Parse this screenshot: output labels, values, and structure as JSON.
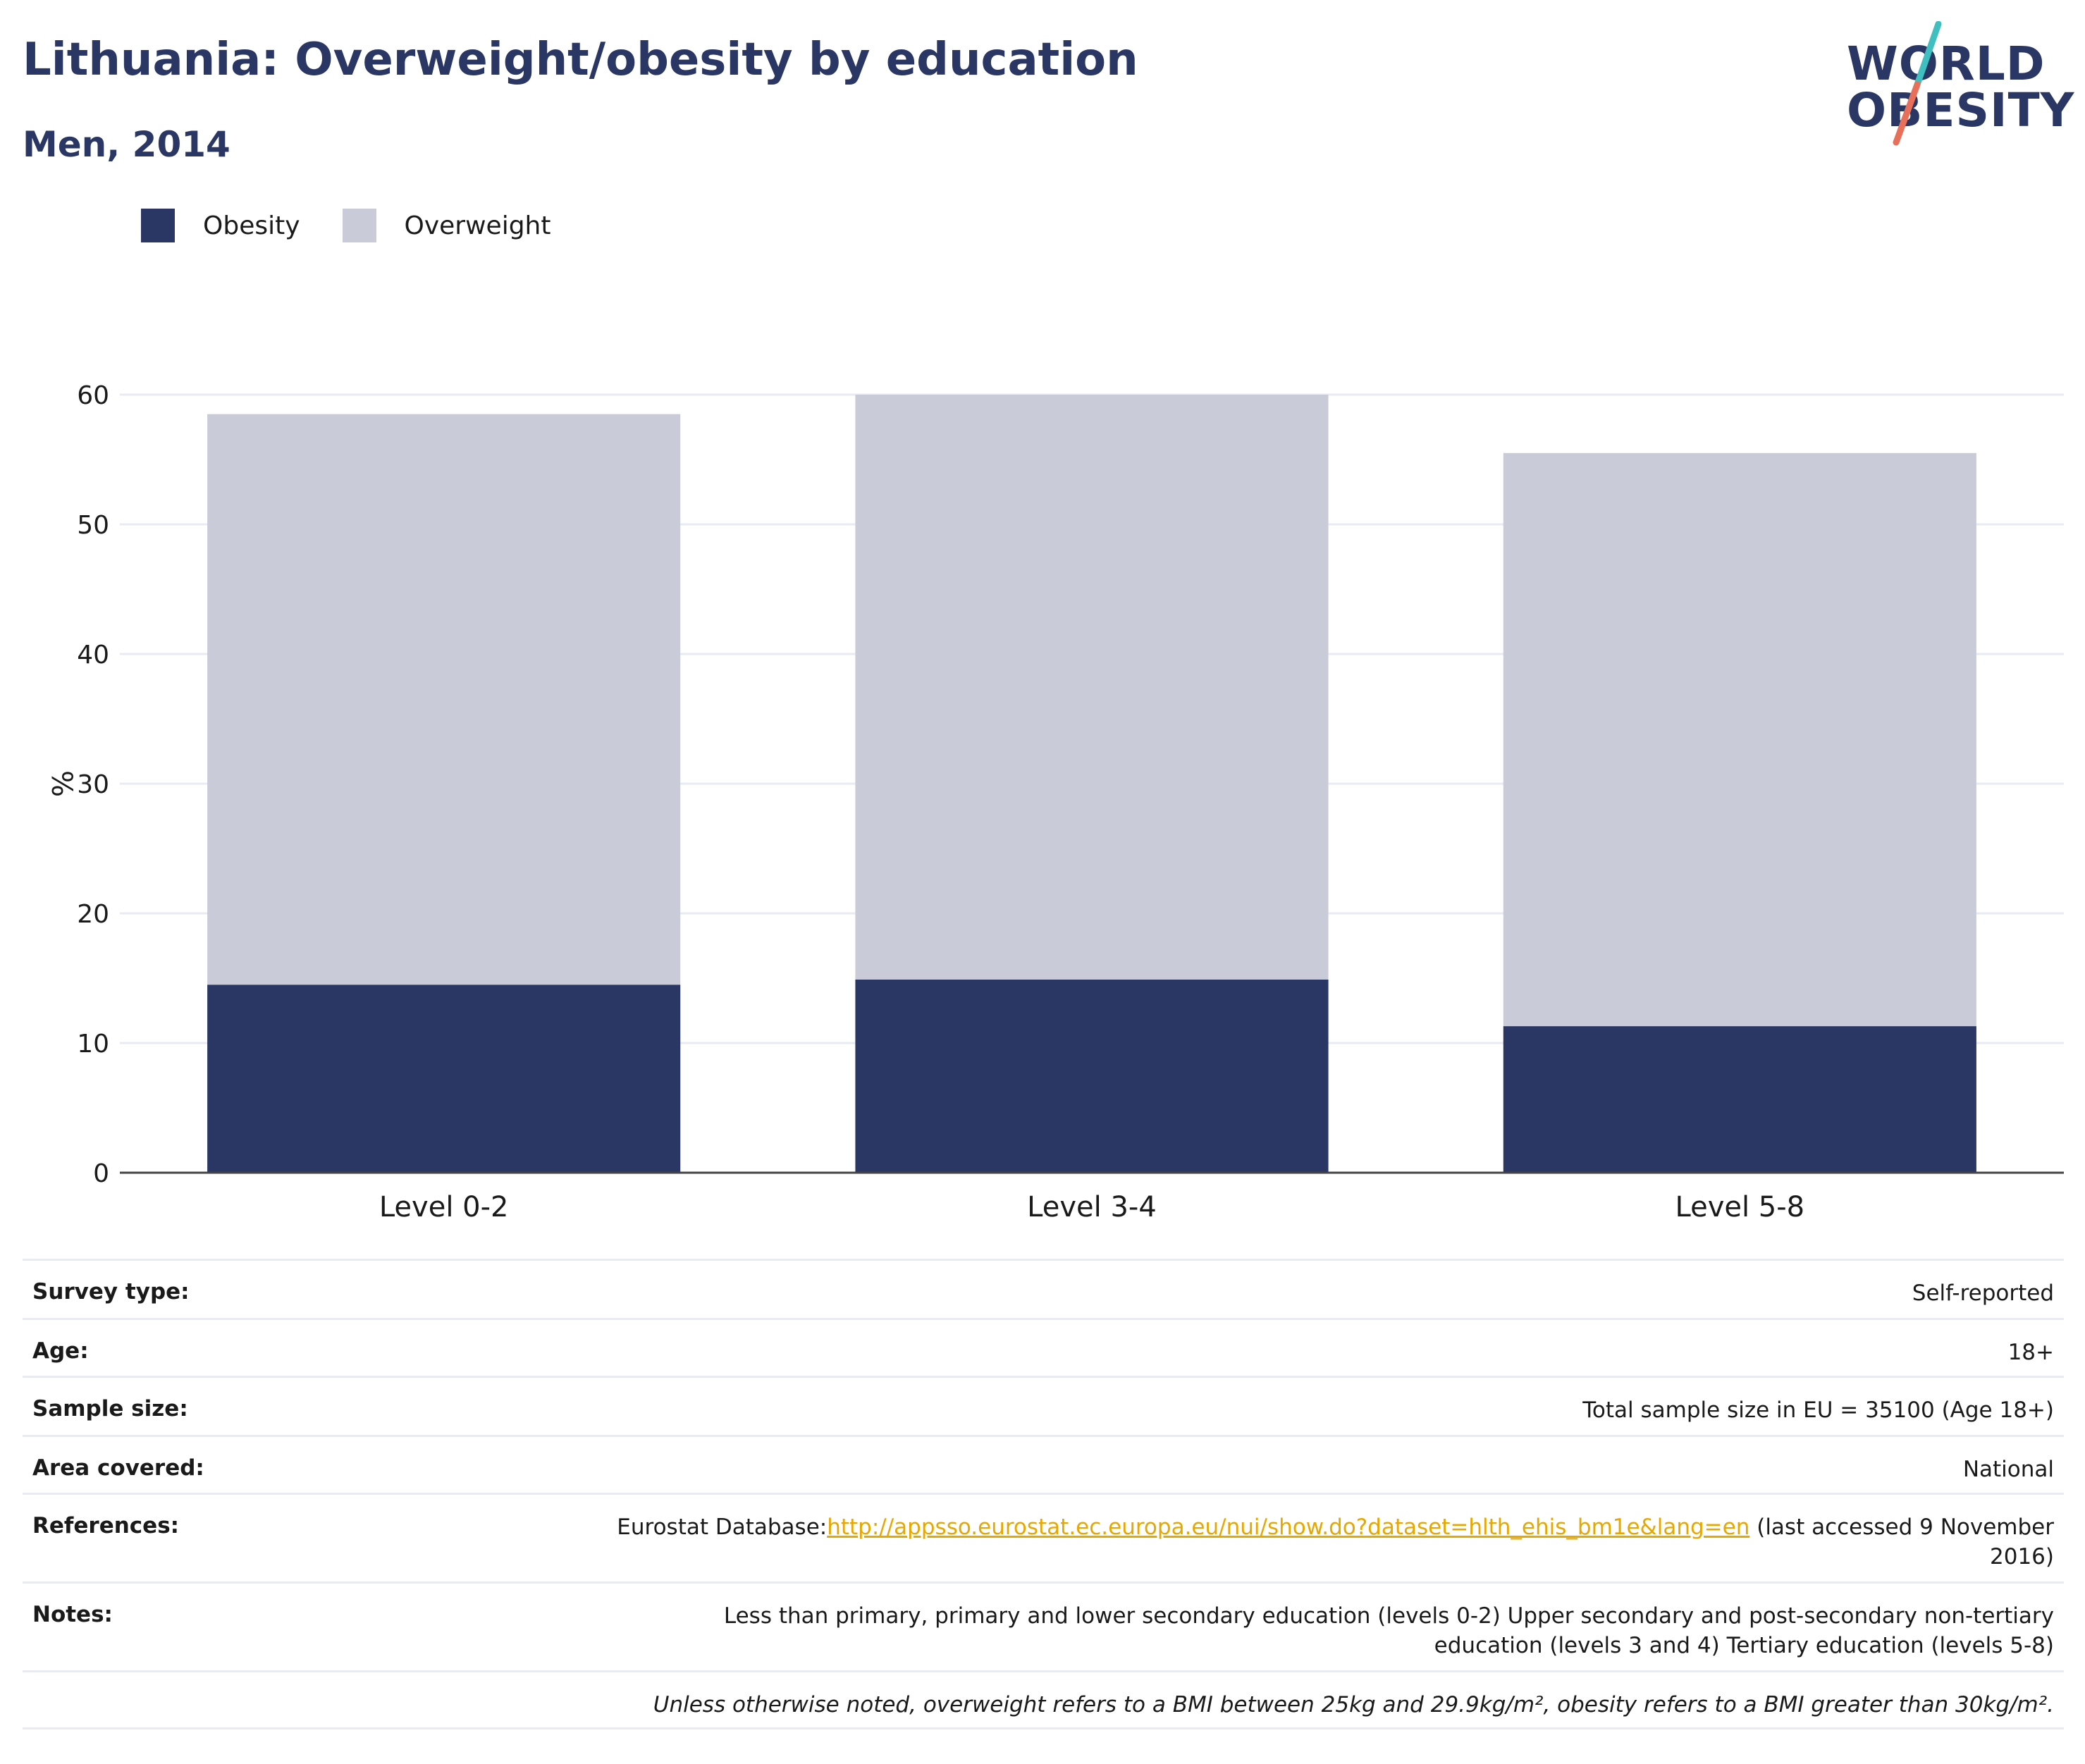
{
  "header": {
    "title": "Lithuania: Overweight/obesity by education",
    "subtitle": "Men, 2014"
  },
  "logo": {
    "line1": "WORLD",
    "line2": "OBESITY",
    "accent_teal": "#3fbfbf",
    "accent_coral": "#e8705a"
  },
  "legend": [
    {
      "label": "Obesity",
      "color": "#2a3663"
    },
    {
      "label": "Overweight",
      "color": "#c9ccd8"
    }
  ],
  "chart_data": {
    "type": "bar",
    "stacked": true,
    "categories": [
      "Level 0-2",
      "Level 3-4",
      "Level 5-8"
    ],
    "series": [
      {
        "name": "Obesity",
        "values": [
          14.5,
          14.9,
          11.3
        ],
        "color": "#2a3663"
      },
      {
        "name": "Overweight",
        "values": [
          44.0,
          45.1,
          44.2
        ],
        "color": "#c9ccd8"
      }
    ],
    "totals": [
      58.5,
      60.0,
      55.5
    ],
    "ylabel": "%",
    "ylim": [
      0,
      60
    ],
    "yticks": [
      "0",
      "10",
      "20",
      "30",
      "40",
      "50",
      "60"
    ],
    "grid": true,
    "legend_position": "top-left"
  },
  "info": {
    "survey_type_label": "Survey type:",
    "survey_type_value": "Self-reported",
    "age_label": "Age:",
    "age_value": "18+",
    "sample_size_label": "Sample size:",
    "sample_size_value": "Total sample size in EU = 35100 (Age 18+)",
    "area_label": "Area covered:",
    "area_value": "National",
    "references_label": "References:",
    "references_prefix": "Eurostat Database:",
    "references_link": "http://appsso.eurostat.ec.europa.eu/nui/show.do?dataset=hlth_ehis_bm1e&lang=en",
    "references_suffix": " (last accessed 9 November 2016)",
    "notes_label": "Notes:",
    "notes_value": "Less than primary, primary and lower secondary education (levels 0-2) Upper secondary and post-secondary non-tertiary education (levels 3 and 4) Tertiary education (levels 5-8)",
    "disclaimer": "Unless otherwise noted, overweight refers to a BMI between 25kg and 29.9kg/m², obesity refers to a BMI greater than 30kg/m²."
  }
}
